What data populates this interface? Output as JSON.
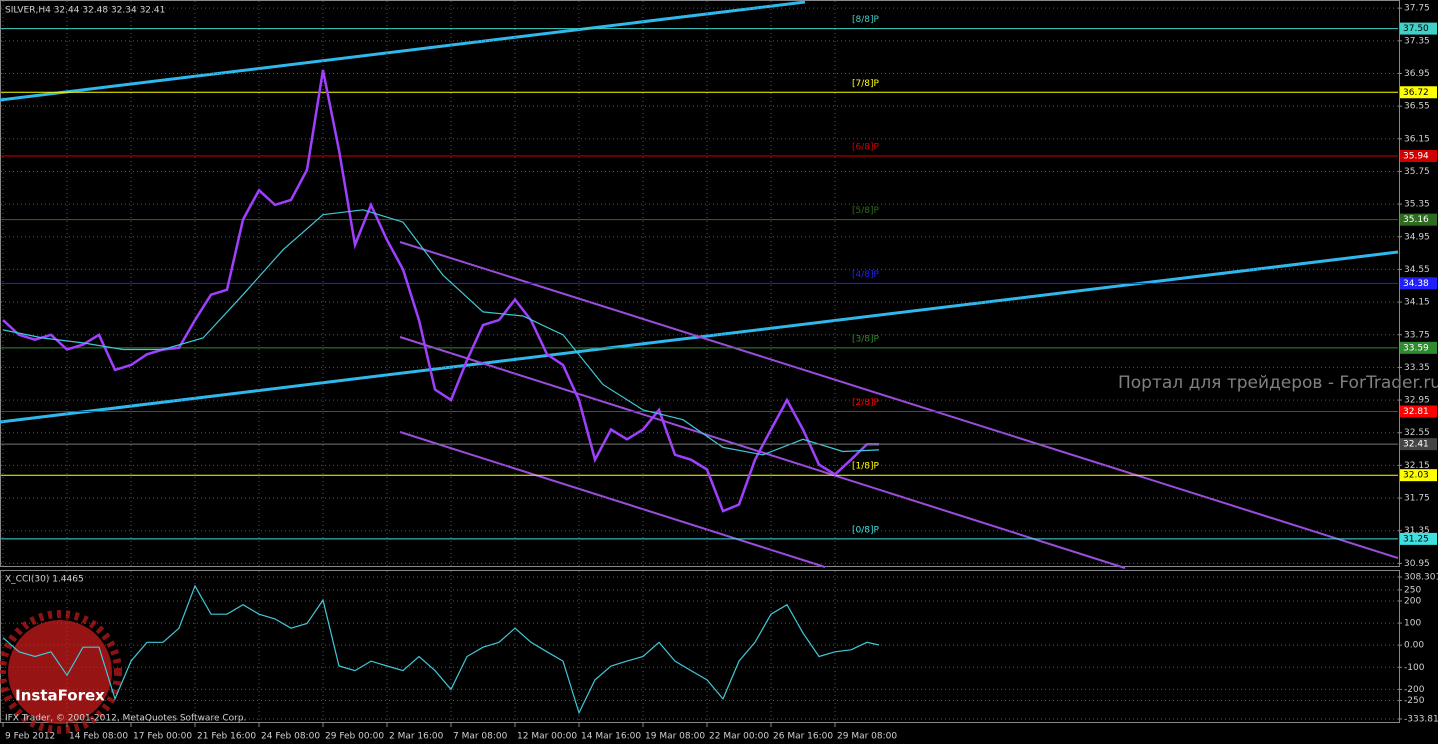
{
  "chart_data": [
    {
      "type": "line",
      "title": "SILVER,H4  32.44 32.48 32.34 32.41",
      "watermark": "Портал для трейдеров - ForTrader.ru",
      "x": [
        0,
        4,
        8,
        12,
        16,
        20,
        24,
        28,
        32,
        36,
        40,
        44,
        48,
        52,
        56,
        60,
        64,
        68,
        72,
        76,
        80,
        84,
        88,
        92,
        96,
        100,
        104,
        108,
        112,
        116,
        120,
        124,
        128,
        132,
        136,
        140,
        144,
        148,
        152,
        156,
        160,
        164,
        168,
        172,
        176,
        180,
        184,
        188,
        192,
        196,
        200,
        204,
        208,
        212,
        216,
        219
      ],
      "xlim": [
        -0.75,
        348.75
      ],
      "ylim": [
        30.93,
        37.85
      ],
      "yticks": [
        37.75,
        37.35,
        36.95,
        36.55,
        36.15,
        35.75,
        35.35,
        34.95,
        34.55,
        34.15,
        33.75,
        33.35,
        32.95,
        32.55,
        32.15,
        31.75,
        31.35,
        30.95
      ],
      "grid": true,
      "series": [
        {
          "color": "#a040ff",
          "values": [
            33.93,
            33.75,
            33.69,
            33.75,
            33.57,
            33.63,
            33.75,
            33.32,
            33.38,
            33.51,
            33.57,
            33.59,
            33.93,
            34.24,
            34.3,
            35.16,
            35.52,
            35.34,
            35.4,
            35.77,
            36.99,
            36.01,
            34.85,
            35.34,
            34.91,
            34.55,
            33.93,
            33.08,
            32.95,
            33.44,
            33.87,
            33.93,
            34.18,
            33.93,
            33.51,
            33.38,
            32.95,
            32.22,
            32.59,
            32.47,
            32.59,
            32.83,
            32.28,
            32.22,
            32.1,
            31.59,
            31.67,
            32.22,
            32.59,
            32.95,
            32.59,
            32.16,
            32.04,
            32.22,
            32.41,
            32.41
          ]
        },
        {
          "color": "#40c8d8",
          "x": [
            0,
            10,
            20,
            30,
            40,
            50,
            60,
            70,
            80,
            90,
            100,
            110,
            120,
            130,
            140,
            150,
            160,
            170,
            180,
            190,
            200,
            210,
            219
          ],
          "values": [
            33.81,
            33.71,
            33.65,
            33.57,
            33.57,
            33.71,
            34.24,
            34.79,
            35.22,
            35.28,
            35.13,
            34.48,
            34.03,
            33.98,
            33.75,
            33.14,
            32.83,
            32.71,
            32.37,
            32.28,
            32.47,
            32.32,
            32.34
          ]
        }
      ],
      "levels": {
        "names": [
          "[8/8]P",
          "[7/8]P",
          "[6/8]P",
          "[5/8]P",
          "[4/8]P",
          "[3/8]P",
          "[2/8]P",
          "[1/8]P",
          "[0/8]P"
        ],
        "values": [
          37.5,
          36.72,
          35.94,
          35.16,
          34.38,
          33.59,
          32.81,
          32.03,
          31.25
        ],
        "value_labels": [
          "37.50",
          "36.72",
          "35.94",
          "35.16",
          "34.38",
          "33.59",
          "32.81",
          "32.03",
          "31.25"
        ],
        "colors": [
          "#40d0c8",
          "#ffff00",
          "#d00000",
          "#2e6b1e",
          "#2020ff",
          "#2e8b2e",
          "#ff0000",
          "#ffff00",
          "#40e0e0"
        ]
      }
    },
    {
      "type": "line",
      "title": "X_CCI(30) 1.4465",
      "x": [
        0,
        4,
        8,
        12,
        16,
        20,
        24,
        28,
        32,
        36,
        40,
        44,
        48,
        52,
        56,
        60,
        64,
        68,
        72,
        76,
        80,
        84,
        88,
        92,
        96,
        100,
        104,
        108,
        112,
        116,
        120,
        124,
        128,
        132,
        136,
        140,
        144,
        148,
        152,
        156,
        160,
        164,
        168,
        172,
        176,
        180,
        184,
        188,
        192,
        196,
        200,
        204,
        208,
        212,
        216,
        219
      ],
      "xlim": [
        -0.75,
        348.75
      ],
      "ylim": [
        -333.81,
        308.301
      ],
      "yticks": [
        308.301,
        250,
        200,
        100,
        {
          "value": 0,
          "label": "0.00"
        },
        -100,
        -200,
        -250,
        {
          "value": -333.81,
          "label": "-333.810"
        }
      ],
      "grid": true,
      "series": [
        {
          "color": "#40c8d8",
          "values": [
            34,
            -30,
            -51,
            -30,
            -136,
            -9,
            -9,
            -243,
            -72,
            13,
            13,
            77,
            268,
            140,
            140,
            183,
            140,
            119,
            77,
            98,
            204,
            -94,
            -115,
            -72,
            -94,
            -115,
            -51,
            -115,
            -200,
            -51,
            -9,
            13,
            77,
            13,
            -30,
            -72,
            -306,
            -157,
            -94,
            -72,
            -51,
            13,
            -72,
            -115,
            -157,
            -243,
            -72,
            13,
            140,
            183,
            55,
            -51,
            -30,
            -21,
            13,
            1
          ]
        }
      ],
      "xticks": [
        {
          "value": 0,
          "label": "9 Feb 2012"
        },
        {
          "value": 16,
          "label": "14 Feb 08:00"
        },
        {
          "value": 32,
          "label": "17 Feb 00:00"
        },
        {
          "value": 48,
          "label": "21 Feb 16:00"
        },
        {
          "value": 64,
          "label": "24 Feb 08:00"
        },
        {
          "value": 80,
          "label": "29 Feb 00:00"
        },
        {
          "value": 96,
          "label": "2 Mar 16:00"
        },
        {
          "value": 112,
          "label": "7 Mar 08:00"
        },
        {
          "value": 128,
          "label": "12 Mar 00:00"
        },
        {
          "value": 144,
          "label": "14 Mar 16:00"
        },
        {
          "value": 160,
          "label": "19 Mar 08:00"
        },
        {
          "value": 176,
          "label": "22 Mar 00:00"
        },
        {
          "value": 192,
          "label": "26 Mar 16:00"
        },
        {
          "value": 208,
          "label": "29 Mar 08:00"
        }
      ]
    }
  ],
  "footer": "IFX Trader, © 2001-2012, MetaQuotes Software Corp.",
  "logo": "InstaForex"
}
